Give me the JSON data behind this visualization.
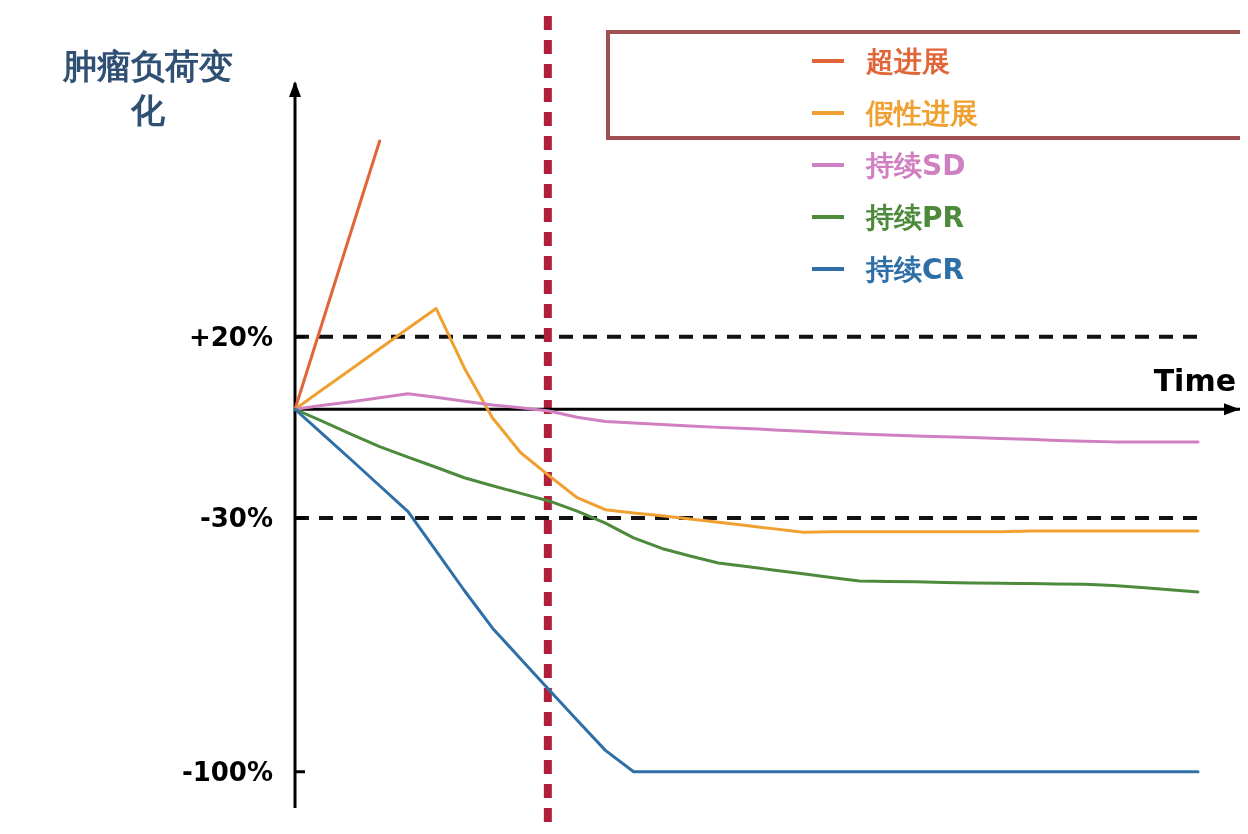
{
  "chart_data": {
    "type": "line",
    "ylabel": "肿瘤负荷变化",
    "xlabel": "Time",
    "categories": [
      null,
      null,
      null,
      null,
      null,
      null,
      null,
      null,
      null,
      null,
      null,
      null,
      null,
      null,
      null,
      null,
      null,
      null,
      null,
      null,
      null,
      null,
      null,
      null,
      null,
      null,
      null,
      null,
      null,
      null,
      null,
      null,
      null
    ],
    "ylim": [
      -110,
      90
    ],
    "yticks": [
      {
        "value": 20,
        "label": "+20%"
      },
      {
        "value": -30,
        "label": "-30%"
      },
      {
        "value": -100,
        "label": "-100%"
      }
    ],
    "tick_labels": "y",
    "legend": "top right",
    "line_style": "solid",
    "series": [
      {
        "name": "超进展",
        "color": "#e0663a",
        "values": [
          0,
          24.7,
          49.4,
          74,
          null,
          null,
          null,
          null,
          null,
          null,
          null,
          null,
          null,
          null,
          null,
          null,
          null,
          null,
          null,
          null,
          null,
          null,
          null,
          null,
          null,
          null,
          null,
          null,
          null,
          null,
          null,
          null,
          null
        ]
      },
      {
        "name": "假性进展",
        "color": "#f0a030",
        "values": [
          0,
          5.6,
          11.1,
          16.7,
          22.3,
          27.8,
          11.4,
          -2.4,
          -12,
          -18.3,
          -24.4,
          -27.7,
          -28.6,
          -29.4,
          -30.3,
          -31.2,
          -32.1,
          -33,
          -33.9,
          -33.8,
          -33.8,
          -33.8,
          -33.8,
          -33.8,
          -33.8,
          -33.8,
          -33.6,
          -33.6,
          -33.6,
          -33.6,
          -33.6,
          -33.6,
          -33.6
        ]
      },
      {
        "name": "持续SD",
        "color": "#d080c0",
        "values": [
          0,
          1.1,
          2.1,
          3.2,
          4.3,
          3.3,
          2.2,
          1.2,
          0.4,
          -0.5,
          -2.2,
          -3.4,
          -3.8,
          -4.2,
          -4.6,
          -5,
          -5.3,
          -5.7,
          -6.1,
          -6.5,
          -6.8,
          -7.1,
          -7.4,
          -7.6,
          -7.8,
          -8.1,
          -8.3,
          -8.6,
          -8.8,
          -9,
          -9,
          -9,
          -9
        ]
      },
      {
        "name": "持续PR",
        "color": "#4e8a3c",
        "values": [
          0,
          -3.4,
          -6.9,
          -10.3,
          -13.2,
          -16,
          -18.9,
          -21.1,
          -23.2,
          -25.3,
          -28.1,
          -31.4,
          -35.5,
          -38.4,
          -40.5,
          -42.4,
          -43.4,
          -44.4,
          -45.4,
          -46.4,
          -47.4,
          -47.5,
          -47.6,
          -47.8,
          -47.9,
          -48,
          -48.1,
          -48.2,
          -48.3,
          -48.6,
          -49.2,
          -49.8,
          -50.4
        ]
      },
      {
        "name": "持续CR",
        "color": "#2e6fa8",
        "values": [
          0,
          -7,
          -14,
          -21.1,
          -28.2,
          -39.1,
          -50,
          -60.4,
          -68.9,
          -77.4,
          -85.8,
          -94.1,
          -100,
          -100,
          -100,
          -100,
          -100,
          -100,
          -100,
          -100,
          -100,
          -100,
          -100,
          -100,
          -100,
          -100,
          -100,
          -100,
          -100,
          -100,
          -100,
          -100,
          -100
        ]
      }
    ],
    "ref_lines": [
      {
        "axis": "y",
        "value": 20,
        "color": "#111111",
        "line_style": "dashed"
      },
      {
        "axis": "y",
        "value": -30,
        "color": "#111111",
        "line_style": "dashed"
      }
    ]
  }
}
